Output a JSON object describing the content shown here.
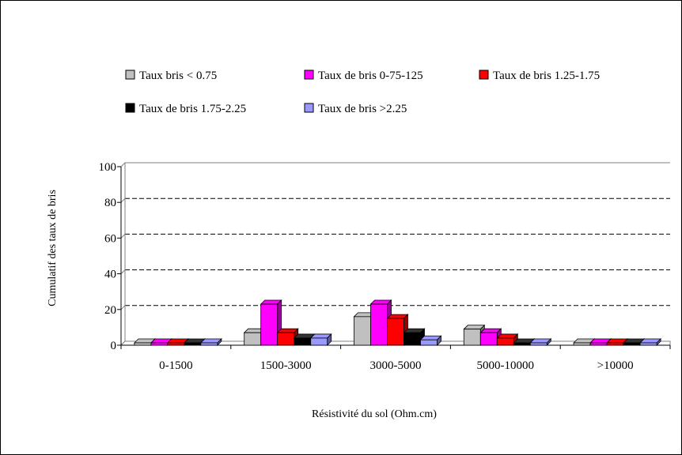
{
  "chart_data": {
    "type": "bar",
    "style": "3d-clustered",
    "title": "",
    "xlabel": "Résistivité du sol  (Ohm.cm)",
    "ylabel": "Cumulatif des taux de bris",
    "ylim": [
      0,
      100
    ],
    "yticks": [
      0,
      20,
      40,
      60,
      80,
      100
    ],
    "grid": "dashed-horizontal",
    "legend": "top",
    "categories": [
      "0-1500",
      "1500-3000",
      "3000-5000",
      "5000-10000",
      ">10000"
    ],
    "series": [
      {
        "name": "Taux bris < 0.75",
        "color": "#c0c0c0",
        "values": [
          0,
          7,
          16,
          9,
          0
        ]
      },
      {
        "name": "Taux de bris 0-75-125",
        "color": "#ff00ff",
        "values": [
          0,
          23,
          23,
          7,
          0
        ]
      },
      {
        "name": "Taux de bris 1.25-1.75",
        "color": "#ff0000",
        "values": [
          0,
          7,
          15,
          4,
          0
        ]
      },
      {
        "name": "Taux de bris 1.75-2.25",
        "color": "#000000",
        "values": [
          0,
          4,
          7,
          0,
          0
        ]
      },
      {
        "name": "Taux de bris >2.25",
        "color": "#9999ff",
        "values": [
          0,
          4,
          3,
          0,
          0
        ]
      }
    ]
  }
}
